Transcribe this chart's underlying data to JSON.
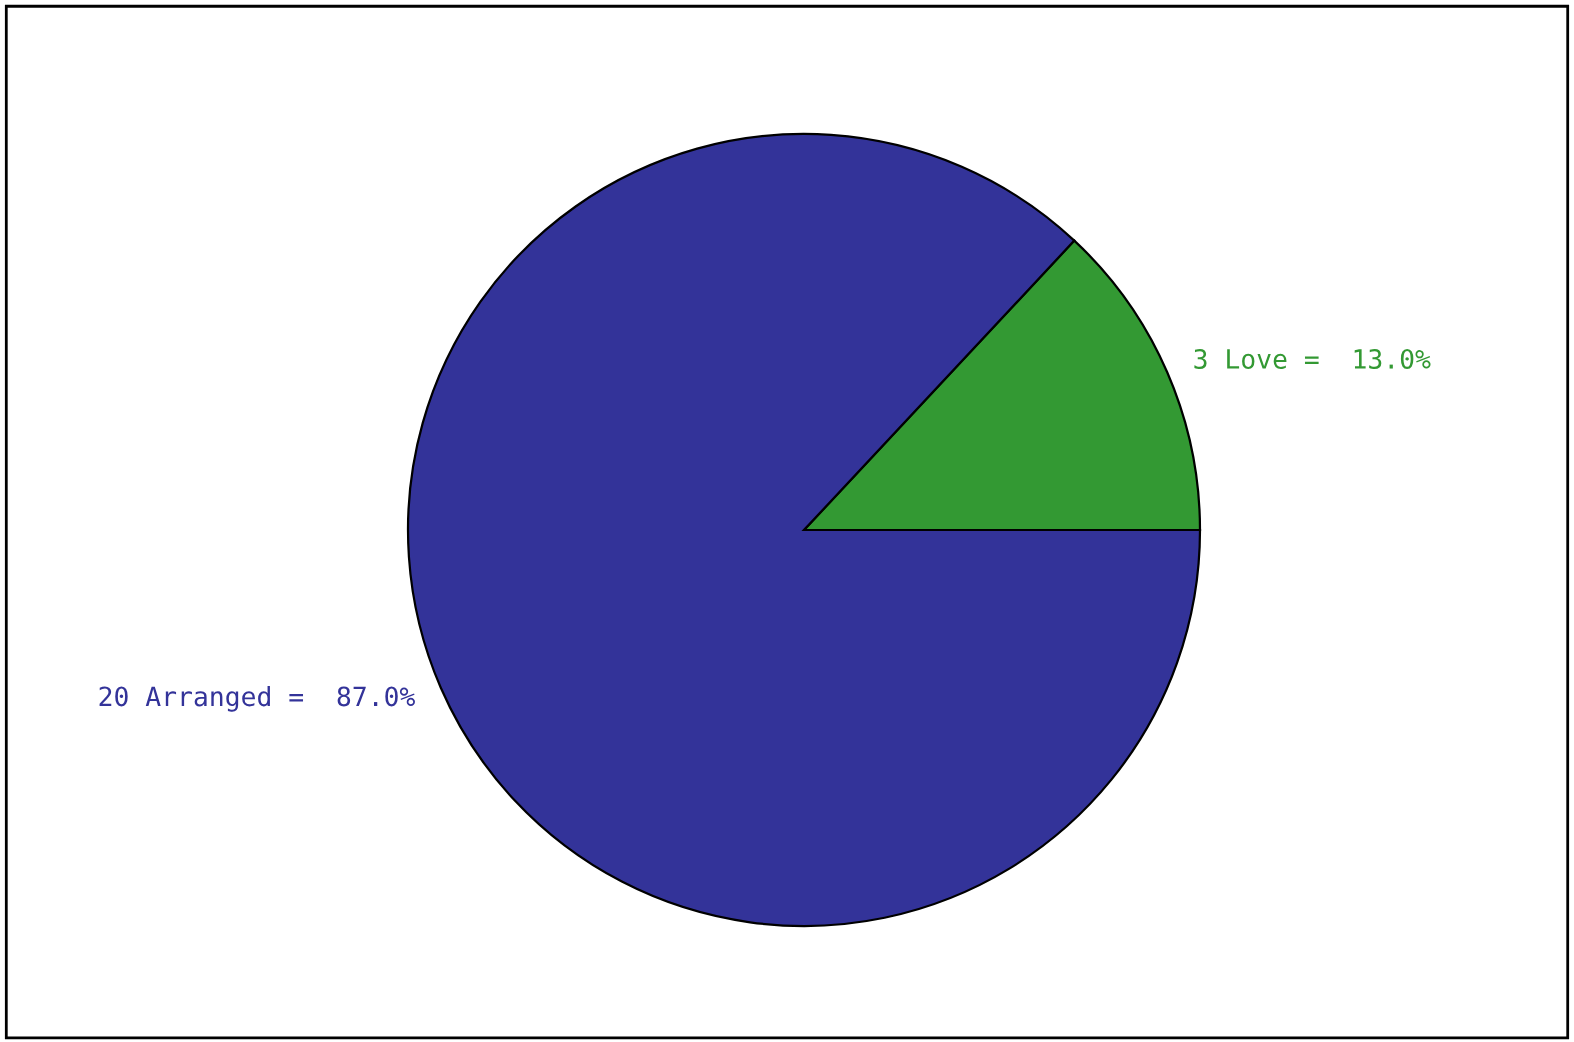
{
  "chart_data": {
    "type": "pie",
    "categories": [
      "3 Love =  13.0%",
      "20 Arranged =  87.0%"
    ],
    "values": [
      3,
      20
    ],
    "colors": [
      "#339933",
      "#333399"
    ]
  }
}
